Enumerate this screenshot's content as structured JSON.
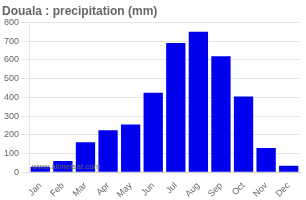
{
  "chart_data": {
    "type": "bar",
    "title": "Douala : precipitation (mm)",
    "categories": [
      "Jan",
      "Feb",
      "Mar",
      "Apr",
      "May",
      "Jun",
      "Jul",
      "Aug",
      "Sep",
      "Oct",
      "Nov",
      "Dec"
    ],
    "values": [
      30,
      60,
      160,
      225,
      255,
      425,
      690,
      750,
      620,
      405,
      130,
      35
    ],
    "color": "#0000ee",
    "ylim": [
      0,
      800
    ],
    "yticks": [
      0,
      100,
      200,
      300,
      400,
      500,
      600,
      700,
      800
    ],
    "grid": true,
    "annotation": "www.allmetsat.com"
  }
}
